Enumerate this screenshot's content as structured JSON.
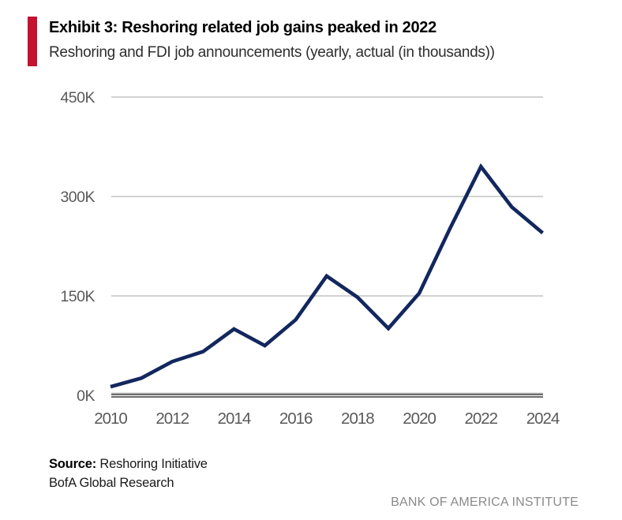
{
  "header": {
    "exhibit_title": "Exhibit 3: Reshoring related job gains peaked in 2022",
    "subtitle": "Reshoring and FDI job announcements (yearly, actual (in thousands))",
    "accent_color": "#C41230"
  },
  "chart_data": {
    "type": "line",
    "title": "Exhibit 3: Reshoring related job gains peaked in 2022",
    "subtitle": "Reshoring and FDI job announcements (yearly, actual (in thousands))",
    "units": "thousands of jobs",
    "x": [
      2010,
      2011,
      2012,
      2013,
      2014,
      2015,
      2016,
      2017,
      2018,
      2019,
      2020,
      2021,
      2022,
      2023,
      2024
    ],
    "series": [
      {
        "name": "Reshoring and FDI job announcements",
        "values": [
          13,
          26,
          51,
          66,
          100,
          75,
          114,
          180,
          148,
          101,
          154,
          252,
          345,
          284,
          245
        ]
      }
    ],
    "xlabel": "",
    "ylabel": "",
    "ylim": [
      0,
      450
    ],
    "yticks": [
      {
        "value": 0,
        "label": "0K"
      },
      {
        "value": 150,
        "label": "150K"
      },
      {
        "value": 300,
        "label": "300K"
      },
      {
        "value": 450,
        "label": "450K"
      }
    ],
    "xticks": [
      {
        "value": 2010,
        "label": "2010"
      },
      {
        "value": 2012,
        "label": "2012"
      },
      {
        "value": 2014,
        "label": "2014"
      },
      {
        "value": 2016,
        "label": "2016"
      },
      {
        "value": 2018,
        "label": "2018"
      },
      {
        "value": 2020,
        "label": "2020"
      },
      {
        "value": 2022,
        "label": "2022"
      },
      {
        "value": 2024,
        "label": "2024"
      }
    ],
    "grid": "horizontal-only",
    "legend": "none",
    "line_color": "#12275E",
    "gridline_color": "#C4C4C4",
    "axis_line_color": "#3B3B3B",
    "axis_text_color": "#595959"
  },
  "footer": {
    "source_label": "Source:",
    "source_value": " Reshoring Initiative",
    "source_line2": "BofA Global Research",
    "brand": "BANK OF AMERICA INSTITUTE"
  }
}
